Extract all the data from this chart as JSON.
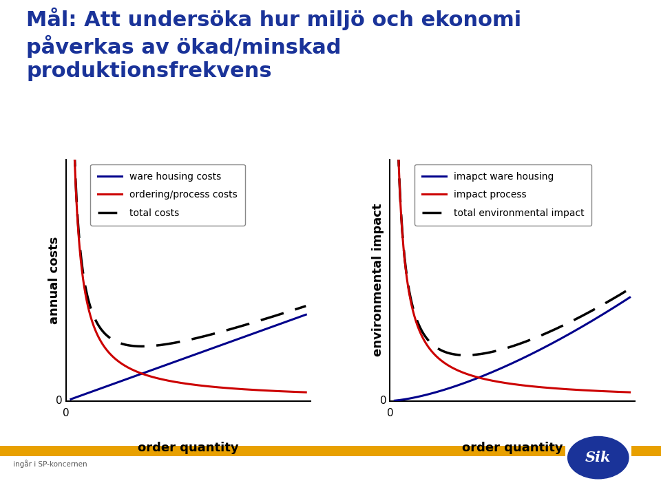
{
  "title_line1": "Mål: Att undersöka hur miljö och ekonomi",
  "title_line2": "påverkas av ökad/minskad",
  "title_line3": "produktionsfrekvens",
  "title_color": "#1a3399",
  "title_fontsize": 22,
  "title_fontweight": "bold",
  "background_color": "#ffffff",
  "plot1": {
    "ylabel": "annual costs",
    "xlabel": "order quantity",
    "legend1": "ware housing costs",
    "legend2": "ordering/process costs",
    "legend3": "total costs"
  },
  "plot2": {
    "ylabel": "environmental impact",
    "xlabel": "order quantity",
    "legend1": "imapct ware housing",
    "legend2": "impact process",
    "legend3": "total environmental impact"
  },
  "line_color_blue": "#00008B",
  "line_color_red": "#CC0000",
  "line_color_black": "#000000",
  "zero_label_fontsize": 11,
  "axis_label_fontsize": 13,
  "axis_label_fontweight": "bold",
  "legend_fontsize": 10,
  "footer_color": "#E8A000",
  "sik_circle_color": "#1a3399"
}
